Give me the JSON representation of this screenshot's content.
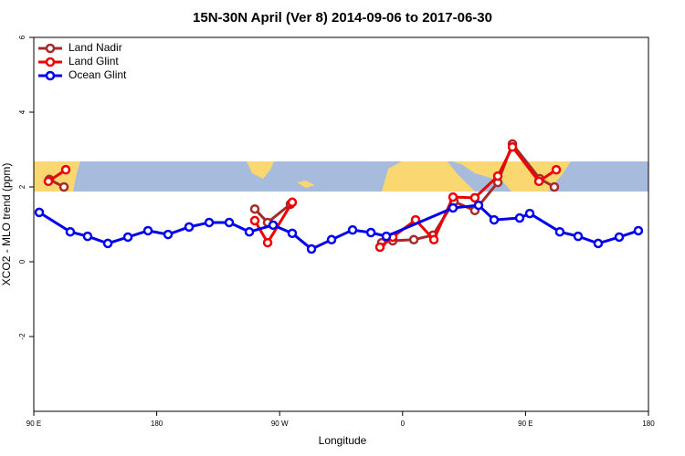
{
  "chart_data": {
    "type": "line",
    "title": "15N-30N April (Ver 8)   2014-09-06 to 2017-06-30",
    "x_label": "Longitude",
    "y_label": "XCO2 - MLO trend (ppm)",
    "xlim": [
      90,
      540
    ],
    "ylim": [
      -4,
      6
    ],
    "xticks": [
      {
        "value": 90,
        "label": "90 E"
      },
      180,
      {
        "value": 270,
        "label": "90 W"
      },
      {
        "value": 360,
        "label": "0"
      },
      {
        "value": 450,
        "label": "90 E"
      },
      {
        "value": 540,
        "label": "180"
      }
    ],
    "yticks": [
      -2,
      0,
      2,
      4,
      6
    ],
    "legend": "top-left",
    "series": [
      {
        "name": "Land Nadir",
        "color": "#a52a2a",
        "x": [
          101.4,
          112.1,
          null,
          251.8,
          261.2,
          277.9,
          null,
          344.7,
          352.8,
          368.2,
          382.2,
          397.6,
          412.9,
          429.7,
          440.4,
          460.4,
          471.1
        ],
        "values": [
          2.2,
          2.0,
          null,
          1.41,
          1.05,
          1.54,
          null,
          0.51,
          0.56,
          0.59,
          0.71,
          1.61,
          1.37,
          2.12,
          3.15,
          2.22,
          2.0
        ]
      },
      {
        "name": "Land Glint",
        "color": "#ee0000",
        "x": [
          100.7,
          113.4,
          null,
          251.8,
          261.2,
          279.2,
          null,
          343.4,
          352.8,
          369.5,
          382.9,
          396.9,
          412.9,
          429.7,
          440.4,
          459.8,
          472.5
        ],
        "values": [
          2.15,
          2.46,
          null,
          1.1,
          0.51,
          1.59,
          null,
          0.39,
          0.66,
          1.12,
          0.59,
          1.73,
          1.71,
          2.29,
          3.07,
          2.15,
          2.46
        ]
      },
      {
        "name": "Ocean Glint",
        "color": "#0000ee",
        "x": [
          94,
          116.7,
          129.4,
          144.2,
          158.9,
          173.6,
          188.3,
          203.7,
          218.4,
          233.1,
          247.8,
          265.2,
          279.2,
          293.3,
          308,
          323.4,
          336.8,
          348.1,
          396.9,
          415.6,
          427,
          445.7,
          453.1,
          475.1,
          488.5,
          503.2,
          518.6,
          532.6
        ],
        "values": [
          1.32,
          0.8,
          0.68,
          0.49,
          0.66,
          0.83,
          0.73,
          0.93,
          1.05,
          1.05,
          0.8,
          0.98,
          0.76,
          0.34,
          0.59,
          0.85,
          0.78,
          0.68,
          1.44,
          1.51,
          1.12,
          1.17,
          1.29,
          0.8,
          0.68,
          0.49,
          0.66,
          0.83
        ]
      }
    ]
  }
}
